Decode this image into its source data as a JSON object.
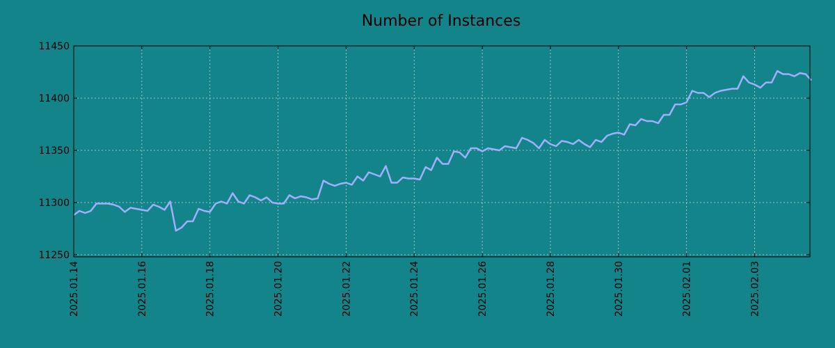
{
  "chart_data": {
    "type": "line",
    "title": "Number of Instances",
    "xlabel": "",
    "ylabel": "",
    "ylim": [
      11248,
      11450
    ],
    "xlim": [
      "2025-01-14",
      "2025-02-04 15:00"
    ],
    "x_tick_labels": [
      "2025.01.14",
      "2025.01.16",
      "2025.01.18",
      "2025.01.20",
      "2025.01.22",
      "2025.01.24",
      "2025.01.26",
      "2025.01.28",
      "2025.01.30",
      "2025.02.01",
      "2025.02.03"
    ],
    "y_tick_labels": [
      "11250",
      "11300",
      "11350",
      "11400",
      "11450"
    ],
    "grid": true,
    "legend": "none",
    "series": [
      {
        "x": [
          "2025-01-14 00:00",
          "2025-01-14 04:00",
          "2025-01-14 08:00",
          "2025-01-14 12:00",
          "2025-01-14 16:00",
          "2025-01-14 20:00",
          "2025-01-15 00:00",
          "2025-01-15 04:00",
          "2025-01-15 08:00",
          "2025-01-15 12:00",
          "2025-01-15 16:00",
          "2025-01-15 20:00",
          "2025-01-16 00:00",
          "2025-01-16 04:00",
          "2025-01-16 08:00",
          "2025-01-16 12:00",
          "2025-01-16 16:00",
          "2025-01-16 20:00",
          "2025-01-17 00:00",
          "2025-01-17 04:00",
          "2025-01-17 08:00",
          "2025-01-17 12:00",
          "2025-01-17 16:00",
          "2025-01-17 20:00",
          "2025-01-18 00:00",
          "2025-01-18 04:00",
          "2025-01-18 08:00",
          "2025-01-18 12:00",
          "2025-01-18 16:00",
          "2025-01-18 20:00",
          "2025-01-19 00:00",
          "2025-01-19 04:00",
          "2025-01-19 08:00",
          "2025-01-19 12:00",
          "2025-01-19 16:00",
          "2025-01-19 20:00",
          "2025-01-20 00:00",
          "2025-01-20 04:00",
          "2025-01-20 08:00",
          "2025-01-20 12:00",
          "2025-01-20 16:00",
          "2025-01-20 20:00",
          "2025-01-21 00:00",
          "2025-01-21 04:00",
          "2025-01-21 08:00",
          "2025-01-21 12:00",
          "2025-01-21 16:00",
          "2025-01-21 20:00",
          "2025-01-22 00:00",
          "2025-01-22 04:00",
          "2025-01-22 08:00",
          "2025-01-22 12:00",
          "2025-01-22 16:00",
          "2025-01-22 20:00",
          "2025-01-23 00:00",
          "2025-01-23 04:00",
          "2025-01-23 08:00",
          "2025-01-23 12:00",
          "2025-01-23 16:00",
          "2025-01-23 20:00",
          "2025-01-24 00:00",
          "2025-01-24 04:00",
          "2025-01-24 08:00",
          "2025-01-24 12:00",
          "2025-01-24 16:00",
          "2025-01-24 20:00",
          "2025-01-25 00:00",
          "2025-01-25 04:00",
          "2025-01-25 08:00",
          "2025-01-25 12:00",
          "2025-01-25 16:00",
          "2025-01-25 20:00",
          "2025-01-26 00:00",
          "2025-01-26 04:00",
          "2025-01-26 08:00",
          "2025-01-26 12:00",
          "2025-01-26 16:00",
          "2025-01-26 20:00",
          "2025-01-27 00:00",
          "2025-01-27 04:00",
          "2025-01-27 08:00",
          "2025-01-27 12:00",
          "2025-01-27 16:00",
          "2025-01-27 20:00",
          "2025-01-28 00:00",
          "2025-01-28 04:00",
          "2025-01-28 08:00",
          "2025-01-28 12:00",
          "2025-01-28 16:00",
          "2025-01-28 20:00",
          "2025-01-29 00:00",
          "2025-01-29 04:00",
          "2025-01-29 08:00",
          "2025-01-29 12:00",
          "2025-01-29 16:00",
          "2025-01-29 20:00",
          "2025-01-30 00:00",
          "2025-01-30 04:00",
          "2025-01-30 08:00",
          "2025-01-30 12:00",
          "2025-01-30 16:00",
          "2025-01-30 20:00",
          "2025-01-31 00:00",
          "2025-01-31 04:00",
          "2025-01-31 08:00",
          "2025-01-31 12:00",
          "2025-01-31 16:00",
          "2025-01-31 20:00",
          "2025-02-01 00:00",
          "2025-02-01 04:00",
          "2025-02-01 08:00",
          "2025-02-01 12:00",
          "2025-02-01 16:00",
          "2025-02-01 20:00",
          "2025-02-02 00:00",
          "2025-02-02 04:00",
          "2025-02-02 08:00",
          "2025-02-02 12:00",
          "2025-02-02 16:00",
          "2025-02-02 20:00",
          "2025-02-03 00:00",
          "2025-02-03 04:00",
          "2025-02-03 08:00",
          "2025-02-03 12:00",
          "2025-02-03 16:00",
          "2025-02-03 20:00",
          "2025-02-04 00:00",
          "2025-02-04 04:00",
          "2025-02-04 08:00",
          "2025-02-04 12:00",
          "2025-02-04 16:00"
        ],
        "values": [
          11288,
          11292,
          11290,
          11292,
          11299,
          11299,
          11299,
          11298,
          11296,
          11291,
          11295,
          11294,
          11293,
          11292,
          11298,
          11296,
          11293,
          11301,
          11273,
          11276,
          11282,
          11282,
          11294,
          11292,
          11291,
          11299,
          11301,
          11299,
          11309,
          11301,
          11299,
          11307,
          11305,
          11302,
          11305,
          11300,
          11299,
          11299,
          11307,
          11304,
          11306,
          11305,
          11303,
          11304,
          11321,
          11318,
          11316,
          11318,
          11319,
          11317,
          11325,
          11321,
          11329,
          11327,
          11325,
          11335,
          11319,
          11319,
          11324,
          11323,
          11323,
          11322,
          11334,
          11331,
          11343,
          11337,
          11337,
          11349,
          11348,
          11343,
          11352,
          11352,
          11349,
          11352,
          11351,
          11350,
          11354,
          11353,
          11352,
          11362,
          11360,
          11357,
          11352,
          11360,
          11356,
          11354,
          11359,
          11358,
          11356,
          11360,
          11356,
          11353,
          11360,
          11358,
          11364,
          11366,
          11367,
          11365,
          11375,
          11374,
          11380,
          11378,
          11378,
          11376,
          11384,
          11384,
          11394,
          11394,
          11396,
          11407,
          11405,
          11405,
          11401,
          11405,
          11407,
          11408,
          11409,
          11409,
          11421,
          11415,
          11413,
          11410,
          11415,
          11415,
          11426,
          11423,
          11423,
          11421,
          11424,
          11423,
          11417
        ]
      }
    ],
    "colors": {
      "background": "#138489",
      "line": "#a0b0ff",
      "grid": "#c8d8d8"
    }
  }
}
